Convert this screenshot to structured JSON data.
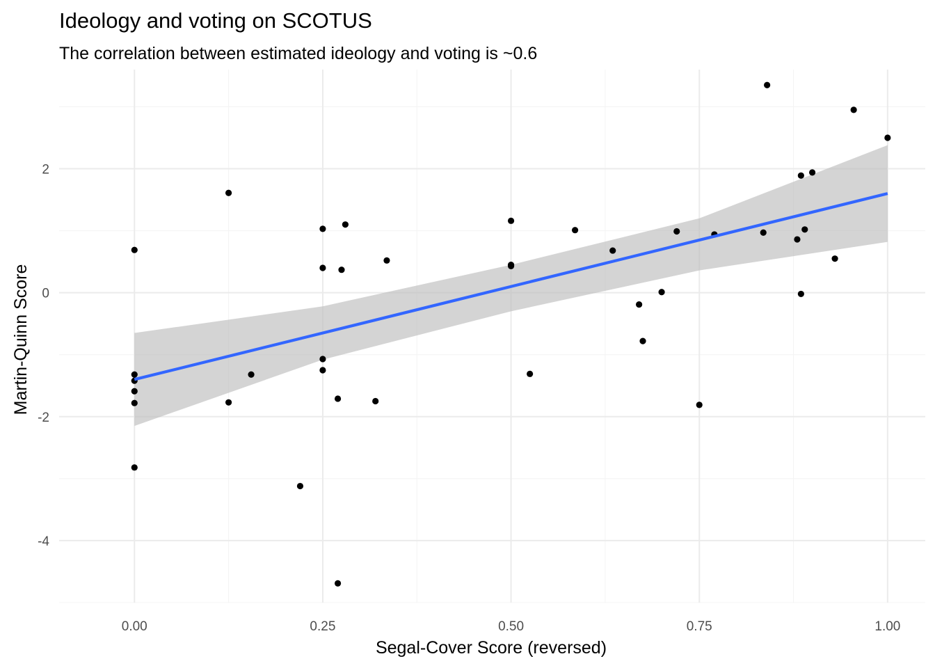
{
  "chart_data": {
    "type": "scatter",
    "title": "Ideology and voting on SCOTUS",
    "subtitle": "The correlation between estimated ideology and voting is ~0.6",
    "xlabel": "Segal-Cover Score (reversed)",
    "ylabel": "Martin-Quinn Score",
    "xlim": [
      -0.1,
      1.05
    ],
    "ylim": [
      -5.0,
      3.6
    ],
    "x_ticks": [
      0.0,
      0.25,
      0.5,
      0.75,
      1.0
    ],
    "x_tick_labels": [
      "0.00",
      "0.25",
      "0.50",
      "0.75",
      "1.00"
    ],
    "y_ticks": [
      -4,
      -2,
      0,
      2
    ],
    "y_tick_labels": [
      "-4",
      "-2",
      "0",
      "2"
    ],
    "grid": true,
    "theme": "minimal",
    "colors": {
      "points": "#000000",
      "trend_line": "#3366ff",
      "confidence_band": "#bdbdbd",
      "grid_major": "#ebebeb",
      "grid_minor": "#f4f4f4"
    },
    "points": [
      {
        "x": 0.0,
        "y": 0.69
      },
      {
        "x": 0.0,
        "y": -1.32
      },
      {
        "x": 0.0,
        "y": -1.42
      },
      {
        "x": 0.0,
        "y": -1.59
      },
      {
        "x": 0.0,
        "y": -1.78
      },
      {
        "x": 0.0,
        "y": -2.82
      },
      {
        "x": 0.125,
        "y": 1.61
      },
      {
        "x": 0.125,
        "y": -1.77
      },
      {
        "x": 0.155,
        "y": -1.32
      },
      {
        "x": 0.22,
        "y": -3.12
      },
      {
        "x": 0.25,
        "y": 1.03
      },
      {
        "x": 0.25,
        "y": 0.4
      },
      {
        "x": 0.25,
        "y": -1.07
      },
      {
        "x": 0.25,
        "y": -1.25
      },
      {
        "x": 0.27,
        "y": -1.71
      },
      {
        "x": 0.27,
        "y": -4.69
      },
      {
        "x": 0.275,
        "y": 0.37
      },
      {
        "x": 0.28,
        "y": 1.1
      },
      {
        "x": 0.32,
        "y": -1.75
      },
      {
        "x": 0.335,
        "y": 0.52
      },
      {
        "x": 0.5,
        "y": 1.16
      },
      {
        "x": 0.5,
        "y": 0.45
      },
      {
        "x": 0.5,
        "y": 0.43
      },
      {
        "x": 0.525,
        "y": -1.31
      },
      {
        "x": 0.585,
        "y": 1.01
      },
      {
        "x": 0.635,
        "y": 0.68
      },
      {
        "x": 0.67,
        "y": -0.19
      },
      {
        "x": 0.675,
        "y": -0.78
      },
      {
        "x": 0.7,
        "y": 0.01
      },
      {
        "x": 0.72,
        "y": 0.99
      },
      {
        "x": 0.75,
        "y": -1.81
      },
      {
        "x": 0.77,
        "y": 0.94
      },
      {
        "x": 0.835,
        "y": 0.97
      },
      {
        "x": 0.84,
        "y": 3.35
      },
      {
        "x": 0.88,
        "y": 0.86
      },
      {
        "x": 0.885,
        "y": 1.89
      },
      {
        "x": 0.885,
        "y": -0.02
      },
      {
        "x": 0.89,
        "y": 1.02
      },
      {
        "x": 0.9,
        "y": 1.94
      },
      {
        "x": 0.93,
        "y": 0.55
      },
      {
        "x": 0.955,
        "y": 2.95
      },
      {
        "x": 1.0,
        "y": 2.5
      }
    ],
    "trend_line": {
      "method": "lm",
      "x": [
        0.0,
        1.0
      ],
      "y": [
        -1.4,
        1.6
      ]
    },
    "confidence_band": {
      "x": [
        0.0,
        0.25,
        0.5,
        0.75,
        1.0
      ],
      "upper": [
        -0.65,
        -0.22,
        0.45,
        1.2,
        2.38
      ],
      "lower": [
        -2.15,
        -1.08,
        -0.3,
        0.36,
        0.82
      ]
    }
  }
}
